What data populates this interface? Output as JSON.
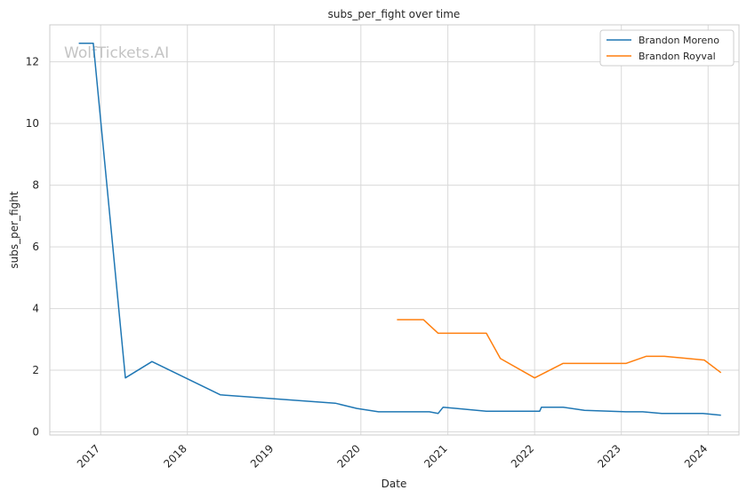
{
  "watermark": "WolfTickets.AI",
  "chart_data": {
    "type": "line",
    "title": "subs_per_fight over time",
    "xlabel": "Date",
    "ylabel": "subs_per_fight",
    "xlim": [
      "2016-06-01",
      "2024-05-10"
    ],
    "ylim": [
      -0.1,
      13.2
    ],
    "x_ticks": [
      "2017",
      "2018",
      "2019",
      "2020",
      "2021",
      "2022",
      "2023",
      "2024"
    ],
    "y_ticks": [
      0,
      2,
      4,
      6,
      8,
      10,
      12
    ],
    "grid": true,
    "legend_position": "top-right",
    "series": [
      {
        "name": "Brandon Moreno",
        "color": "#1f77b4",
        "points": [
          [
            "2016-10-01",
            12.6
          ],
          [
            "2016-12-01",
            12.6
          ],
          [
            "2017-04-15",
            1.75
          ],
          [
            "2017-08-05",
            2.28
          ],
          [
            "2018-05-20",
            1.2
          ],
          [
            "2019-09-15",
            0.93
          ],
          [
            "2019-12-15",
            0.76
          ],
          [
            "2020-03-15",
            0.65
          ],
          [
            "2020-10-15",
            0.65
          ],
          [
            "2020-11-21",
            0.6
          ],
          [
            "2020-12-12",
            0.8
          ],
          [
            "2021-06-12",
            0.67
          ],
          [
            "2022-01-22",
            0.67
          ],
          [
            "2022-01-30",
            0.8
          ],
          [
            "2022-05-01",
            0.8
          ],
          [
            "2022-07-30",
            0.7
          ],
          [
            "2023-01-20",
            0.65
          ],
          [
            "2023-04-01",
            0.65
          ],
          [
            "2023-06-20",
            0.6
          ],
          [
            "2023-12-10",
            0.6
          ],
          [
            "2024-02-24",
            0.54
          ]
        ]
      },
      {
        "name": "Brandon Royval",
        "color": "#ff7f0e",
        "points": [
          [
            "2020-06-01",
            3.64
          ],
          [
            "2020-09-20",
            3.64
          ],
          [
            "2020-11-21",
            3.2
          ],
          [
            "2021-06-12",
            3.2
          ],
          [
            "2021-08-10",
            2.38
          ],
          [
            "2022-01-01",
            1.75
          ],
          [
            "2022-04-30",
            2.22
          ],
          [
            "2023-01-20",
            2.22
          ],
          [
            "2023-04-15",
            2.45
          ],
          [
            "2023-07-01",
            2.45
          ],
          [
            "2023-12-16",
            2.33
          ],
          [
            "2024-02-24",
            1.92
          ]
        ]
      }
    ]
  }
}
